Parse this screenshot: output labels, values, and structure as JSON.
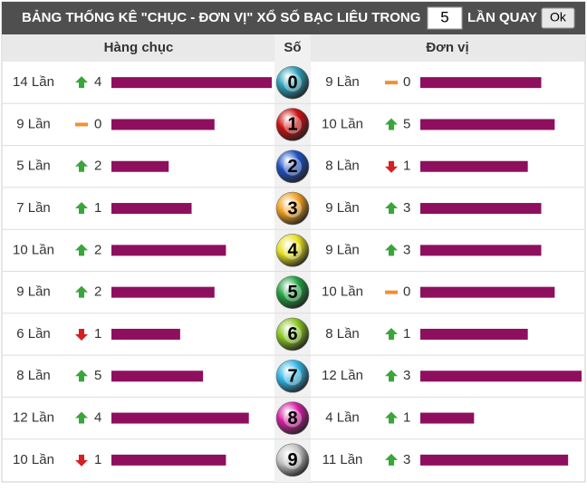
{
  "header": {
    "title": "BẢNG THỐNG KÊ \"CHỤC - ĐƠN VỊ\" XỔ SỐ BẠC LIÊU TRONG",
    "input_value": "5",
    "suffix": "LẦN QUAY",
    "button": "Ok"
  },
  "columns": [
    "Hàng chục",
    "Số",
    "Đơn vị"
  ],
  "bar_color": "#8e0f5e",
  "rows": [
    {
      "digit": "0",
      "color": "#2a9fb8",
      "tens": {
        "count": {
          "value": 14,
          "label": "14 Lần"
        },
        "trend": "up",
        "delta": 4
      },
      "units": {
        "count": {
          "value": 9,
          "label": "9 Lần"
        },
        "trend": "flat",
        "delta": 0
      }
    },
    {
      "digit": "1",
      "color": "#cc1010",
      "tens": {
        "count": {
          "value": 9,
          "label": "9 Lần"
        },
        "trend": "flat",
        "delta": 0
      },
      "units": {
        "count": {
          "value": 10,
          "label": "10 Lần"
        },
        "trend": "up",
        "delta": 5
      }
    },
    {
      "digit": "2",
      "color": "#1e50c0",
      "tens": {
        "count": {
          "value": 5,
          "label": "5 Lần"
        },
        "trend": "up",
        "delta": 2
      },
      "units": {
        "count": {
          "value": 8,
          "label": "8 Lần"
        },
        "trend": "down",
        "delta": 1
      }
    },
    {
      "digit": "3",
      "color": "#f0a020",
      "tens": {
        "count": {
          "value": 7,
          "label": "7 Lần"
        },
        "trend": "up",
        "delta": 1
      },
      "units": {
        "count": {
          "value": 9,
          "label": "9 Lần"
        },
        "trend": "up",
        "delta": 3
      }
    },
    {
      "digit": "4",
      "color": "#e6e020",
      "tens": {
        "count": {
          "value": 10,
          "label": "10 Lần"
        },
        "trend": "up",
        "delta": 2
      },
      "units": {
        "count": {
          "value": 9,
          "label": "9 Lần"
        },
        "trend": "up",
        "delta": 3
      }
    },
    {
      "digit": "5",
      "color": "#22a040",
      "tens": {
        "count": {
          "value": 9,
          "label": "9 Lần"
        },
        "trend": "up",
        "delta": 2
      },
      "units": {
        "count": {
          "value": 10,
          "label": "10 Lần"
        },
        "trend": "flat",
        "delta": 0
      }
    },
    {
      "digit": "6",
      "color": "#86c420",
      "tens": {
        "count": {
          "value": 6,
          "label": "6 Lần"
        },
        "trend": "down",
        "delta": 1
      },
      "units": {
        "count": {
          "value": 8,
          "label": "8 Lần"
        },
        "trend": "up",
        "delta": 1
      }
    },
    {
      "digit": "7",
      "color": "#30b4e4",
      "tens": {
        "count": {
          "value": 8,
          "label": "8 Lần"
        },
        "trend": "up",
        "delta": 5
      },
      "units": {
        "count": {
          "value": 12,
          "label": "12 Lần"
        },
        "trend": "up",
        "delta": 3
      }
    },
    {
      "digit": "8",
      "color": "#d020a0",
      "tens": {
        "count": {
          "value": 12,
          "label": "12 Lần"
        },
        "trend": "up",
        "delta": 4
      },
      "units": {
        "count": {
          "value": 4,
          "label": "4 Lần"
        },
        "trend": "up",
        "delta": 1
      }
    },
    {
      "digit": "9",
      "color": "#c4c4c4",
      "tens": {
        "count": {
          "value": 10,
          "label": "10 Lần"
        },
        "trend": "down",
        "delta": 1
      },
      "units": {
        "count": {
          "value": 11,
          "label": "11 Lần"
        },
        "trend": "up",
        "delta": 3
      }
    }
  ]
}
